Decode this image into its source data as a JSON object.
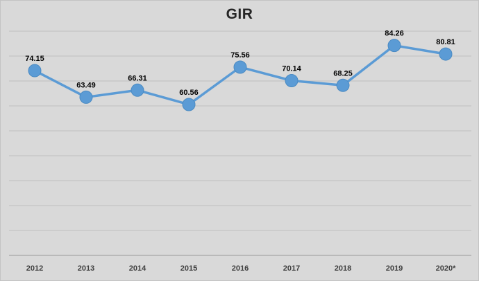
{
  "chart_data": {
    "type": "line",
    "title": "GIR",
    "categories": [
      "2012",
      "2013",
      "2014",
      "2015",
      "2016",
      "2017",
      "2018",
      "2019",
      "2020*"
    ],
    "series": [
      {
        "name": "GIR",
        "values": [
          74.15,
          63.49,
          66.31,
          60.56,
          75.56,
          70.14,
          68.25,
          84.26,
          80.81
        ]
      }
    ],
    "data_labels": [
      "74.15",
      "63.49",
      "66.31",
      "60.56",
      "75.56",
      "70.14",
      "68.25",
      "84.26",
      "80.81"
    ],
    "xlabel": "",
    "ylabel": "",
    "ylim": [
      0,
      90
    ],
    "gridline_step": 10,
    "grid": true,
    "legend": "none",
    "colors": {
      "line": "#5b9bd5",
      "marker_fill": "#5b9bd5",
      "marker_stroke": "#4a8ac2",
      "background": "#d9d9d9",
      "gridline": "#c0c0c0",
      "axis": "#a6a6a6",
      "title": "#262626",
      "tick": "#404040",
      "data_label": "#000000"
    }
  }
}
